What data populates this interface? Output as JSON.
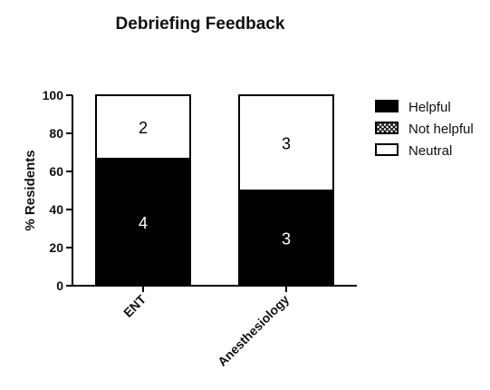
{
  "chart_data": {
    "type": "bar",
    "stacked": true,
    "title": "Debriefing Feedback",
    "xlabel": "",
    "ylabel": "% Residents",
    "ylim": [
      0,
      100
    ],
    "yticks": [
      "0",
      "20",
      "40",
      "60",
      "80",
      "100"
    ],
    "categories": [
      "ENT",
      "Anesthesiology"
    ],
    "series": [
      {
        "name": "Helpful",
        "values": [
          66.7,
          50
        ],
        "counts": [
          "4",
          "3"
        ],
        "color": "#000000",
        "pattern": "solid"
      },
      {
        "name": "Not helpful",
        "values": [
          0,
          0
        ],
        "counts": [
          "",
          ""
        ],
        "color": "#000000",
        "pattern": "crosshatch"
      },
      {
        "name": "Neutral",
        "values": [
          33.3,
          50
        ],
        "counts": [
          "2",
          "3"
        ],
        "color": "#ffffff",
        "pattern": "empty"
      }
    ],
    "legend_position": "right",
    "grid": false
  }
}
